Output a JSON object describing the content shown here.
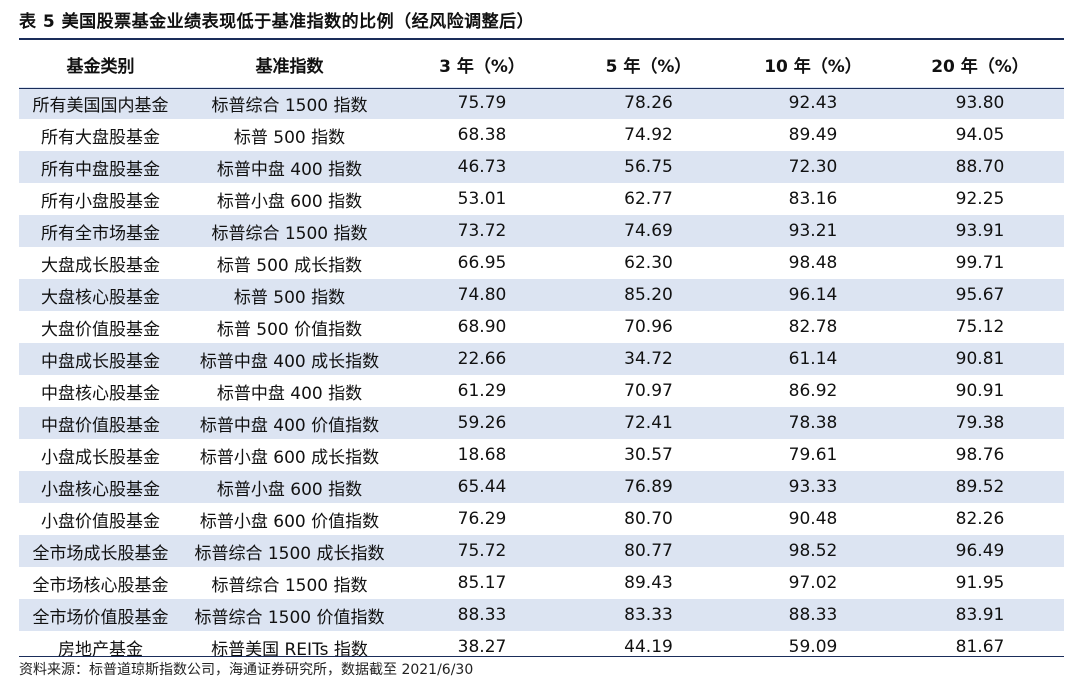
{
  "title": "表 5  美国股票基金业绩表现低于基准指数的比例（经风险调整后）",
  "columns": [
    "基金类别",
    "基准指数",
    "3 年（%）",
    "5 年（%）",
    "10 年（%）",
    "20 年（%）"
  ],
  "rows": [
    [
      "所有美国国内基金",
      "标普综合 1500 指数",
      "75.79",
      "78.26",
      "92.43",
      "93.80"
    ],
    [
      "所有大盘股基金",
      "标普 500 指数",
      "68.38",
      "74.92",
      "89.49",
      "94.05"
    ],
    [
      "所有中盘股基金",
      "标普中盘 400 指数",
      "46.73",
      "56.75",
      "72.30",
      "88.70"
    ],
    [
      "所有小盘股基金",
      "标普小盘 600 指数",
      "53.01",
      "62.77",
      "83.16",
      "92.25"
    ],
    [
      "所有全市场基金",
      "标普综合 1500 指数",
      "73.72",
      "74.69",
      "93.21",
      "93.91"
    ],
    [
      "大盘成长股基金",
      "标普 500 成长指数",
      "66.95",
      "62.30",
      "98.48",
      "99.71"
    ],
    [
      "大盘核心股基金",
      "标普 500 指数",
      "74.80",
      "85.20",
      "96.14",
      "95.67"
    ],
    [
      "大盘价值股基金",
      "标普 500 价值指数",
      "68.90",
      "70.96",
      "82.78",
      "75.12"
    ],
    [
      "中盘成长股基金",
      "标普中盘 400 成长指数",
      "22.66",
      "34.72",
      "61.14",
      "90.81"
    ],
    [
      "中盘核心股基金",
      "标普中盘 400 指数",
      "61.29",
      "70.97",
      "86.92",
      "90.91"
    ],
    [
      "中盘价值股基金",
      "标普中盘 400 价值指数",
      "59.26",
      "72.41",
      "78.38",
      "79.38"
    ],
    [
      "小盘成长股基金",
      "标普小盘 600 成长指数",
      "18.68",
      "30.57",
      "79.61",
      "98.76"
    ],
    [
      "小盘核心股基金",
      "标普小盘 600 指数",
      "65.44",
      "76.89",
      "93.33",
      "89.52"
    ],
    [
      "小盘价值股基金",
      "标普小盘 600 价值指数",
      "76.29",
      "80.70",
      "90.48",
      "82.26"
    ],
    [
      "全市场成长股基金",
      "标普综合 1500 成长指数",
      "75.72",
      "80.77",
      "98.52",
      "96.49"
    ],
    [
      "全市场核心股基金",
      "标普综合 1500 指数",
      "85.17",
      "89.43",
      "97.02",
      "91.95"
    ],
    [
      "全市场价值股基金",
      "标普综合 1500 价值指数",
      "88.33",
      "83.33",
      "88.33",
      "83.91"
    ],
    [
      "房地产基金",
      "标普美国 REITs 指数",
      "38.27",
      "44.19",
      "59.09",
      "81.67"
    ]
  ],
  "footnote": "资料来源：标普道琼斯指数公司，海通证券研究所，数据截至 2021/6/30",
  "colors": {
    "stripe": "#dce4f2",
    "rule": "#1a2d5a"
  }
}
